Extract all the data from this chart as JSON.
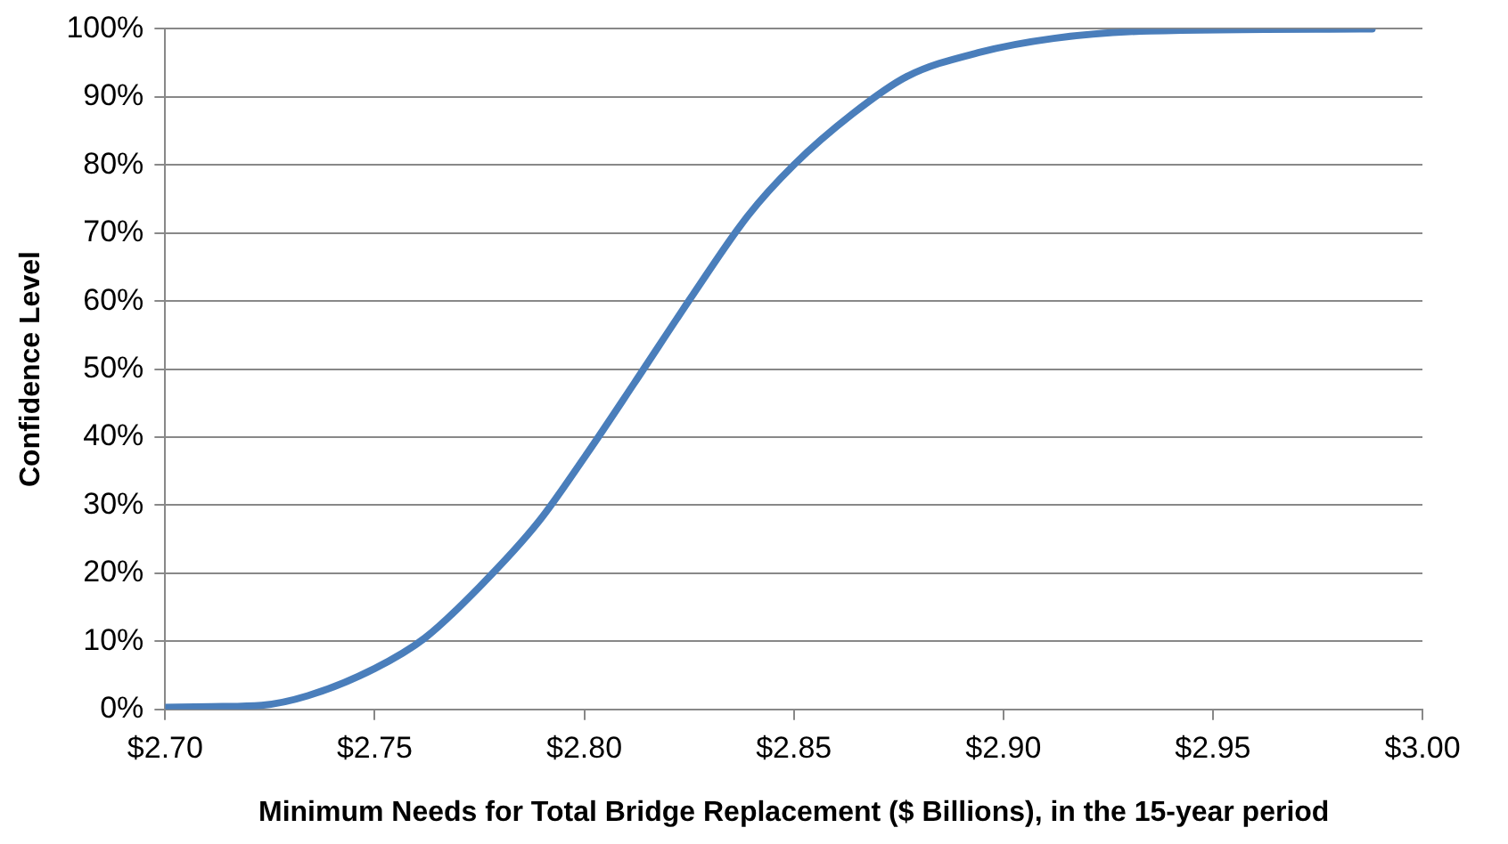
{
  "chart_data": {
    "type": "line",
    "xlabel": "Minimum Needs for Total Bridge Replacement ($ Billions), in the 15-year period",
    "ylabel": "Confidence Level",
    "x": [
      2.7,
      2.711,
      2.723,
      2.734,
      2.75,
      2.762,
      2.775,
      2.789,
      2.8,
      2.812,
      2.826,
      2.839,
      2.85,
      2.864,
      2.877,
      2.894,
      2.912,
      2.935,
      2.988
    ],
    "series": [
      {
        "color": "#4a7ebb",
        "values": [
          0.3,
          0.4,
          0.6,
          2,
          6,
          10.5,
          18,
          27.5,
          37,
          48,
          61,
          72.5,
          80,
          87.5,
          93,
          96.5,
          98.6,
          99.7,
          100
        ]
      }
    ],
    "xlim": [
      2.7,
      3.0
    ],
    "xticks": [
      {
        "value": 2.7,
        "label": "$2.70"
      },
      {
        "value": 2.75,
        "label": "$2.75"
      },
      {
        "value": 2.8,
        "label": "$2.80"
      },
      {
        "value": 2.85,
        "label": "$2.85"
      },
      {
        "value": 2.9,
        "label": "$2.90"
      },
      {
        "value": 2.95,
        "label": "$2.95"
      },
      {
        "value": 3.0,
        "label": "$3.00"
      }
    ],
    "ylim": [
      0,
      100
    ],
    "yticks": [
      {
        "value": 0,
        "label": "0%"
      },
      {
        "value": 10,
        "label": "10%"
      },
      {
        "value": 20,
        "label": "20%"
      },
      {
        "value": 30,
        "label": "30%"
      },
      {
        "value": 40,
        "label": "40%"
      },
      {
        "value": 50,
        "label": "50%"
      },
      {
        "value": 60,
        "label": "60%"
      },
      {
        "value": 70,
        "label": "70%"
      },
      {
        "value": 80,
        "label": "80%"
      },
      {
        "value": 90,
        "label": "90%"
      },
      {
        "value": 100,
        "label": "100%"
      }
    ],
    "grid": "y",
    "legend": false,
    "marker": "none",
    "line_style": "solid"
  }
}
